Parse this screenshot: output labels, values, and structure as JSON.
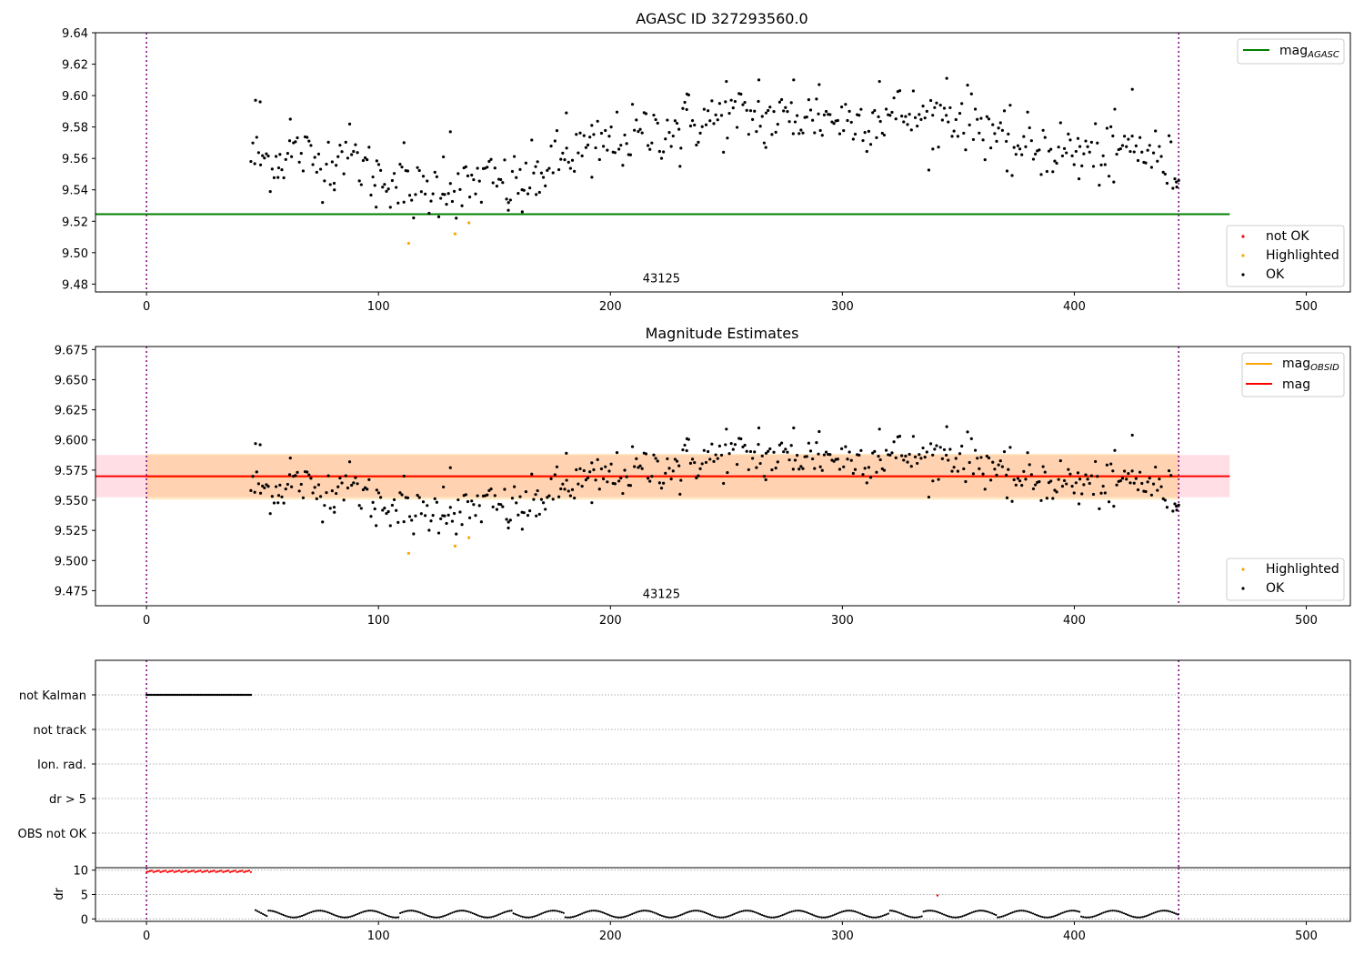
{
  "chart_data": [
    {
      "type": "scatter",
      "title": "AGASC ID 327293560.0",
      "xlim": [
        -22,
        519
      ],
      "ylim": [
        9.475,
        9.64
      ],
      "xticks": [
        0,
        100,
        200,
        300,
        400,
        500
      ],
      "yticks": [
        9.48,
        9.5,
        9.52,
        9.54,
        9.56,
        9.58,
        9.6,
        9.62,
        9.64
      ],
      "ytick_labels": [
        "9.48",
        "9.50",
        "9.52",
        "9.54",
        "9.56",
        "9.58",
        "9.60",
        "9.62",
        "9.64"
      ],
      "vertical_lines_x": [
        0,
        445
      ],
      "obsid_label": {
        "text": "43125",
        "x": 222,
        "y": 9.481
      },
      "mag_agasc": {
        "value": 9.5245,
        "x_range": [
          -22,
          467
        ],
        "color": "#008000"
      },
      "highlighted_points": [
        [
          113,
          9.506
        ],
        [
          133,
          9.512
        ],
        [
          139,
          9.519
        ]
      ],
      "legend_upper": {
        "position": "upper right",
        "mag_prefix": "mag",
        "mag_subscript": "AGASC"
      },
      "legend_lower": {
        "position": "lower right",
        "labels": [
          "not OK",
          "Highlighted",
          "OK"
        ]
      },
      "ok_anchors": [
        [
          45,
          9.561
        ],
        [
          55,
          9.558
        ],
        [
          65,
          9.565
        ],
        [
          75,
          9.556
        ],
        [
          85,
          9.566
        ],
        [
          95,
          9.553
        ],
        [
          105,
          9.548
        ],
        [
          112,
          9.538
        ],
        [
          120,
          9.539
        ],
        [
          128,
          9.543
        ],
        [
          135,
          9.538
        ],
        [
          145,
          9.547
        ],
        [
          155,
          9.543
        ],
        [
          165,
          9.547
        ],
        [
          175,
          9.556
        ],
        [
          185,
          9.564
        ],
        [
          195,
          9.568
        ],
        [
          205,
          9.572
        ],
        [
          215,
          9.576
        ],
        [
          225,
          9.579
        ],
        [
          235,
          9.583
        ],
        [
          245,
          9.585
        ],
        [
          255,
          9.587
        ],
        [
          265,
          9.586
        ],
        [
          275,
          9.585
        ],
        [
          285,
          9.587
        ],
        [
          295,
          9.586
        ],
        [
          305,
          9.584
        ],
        [
          315,
          9.586
        ],
        [
          325,
          9.589
        ],
        [
          335,
          9.585
        ],
        [
          345,
          9.588
        ],
        [
          355,
          9.585
        ],
        [
          365,
          9.579
        ],
        [
          370,
          9.568
        ],
        [
          380,
          9.568
        ],
        [
          390,
          9.566
        ],
        [
          400,
          9.565
        ],
        [
          410,
          9.562
        ],
        [
          420,
          9.566
        ],
        [
          430,
          9.566
        ],
        [
          440,
          9.556
        ],
        [
          445,
          9.55
        ]
      ],
      "ok_extremes": [
        [
          47,
          9.597
        ],
        [
          49,
          9.596
        ],
        [
          57,
          9.554
        ],
        [
          62,
          9.585
        ],
        [
          81,
          9.54
        ],
        [
          99,
          9.529
        ],
        [
          111,
          9.57
        ],
        [
          128,
          9.561
        ],
        [
          131,
          9.577
        ],
        [
          156,
          9.527
        ],
        [
          162,
          9.526
        ],
        [
          168,
          9.537
        ],
        [
          181,
          9.589
        ],
        [
          192,
          9.548
        ],
        [
          230,
          9.555
        ],
        [
          233,
          9.601
        ],
        [
          250,
          9.609
        ],
        [
          264,
          9.61
        ],
        [
          267,
          9.567
        ],
        [
          279,
          9.61
        ],
        [
          290,
          9.607
        ],
        [
          316,
          9.609
        ],
        [
          339,
          9.566
        ],
        [
          345,
          9.611
        ],
        [
          371,
          9.552
        ],
        [
          402,
          9.547
        ],
        [
          417,
          9.545
        ],
        [
          425,
          9.604
        ],
        [
          444,
          9.545
        ]
      ],
      "ok_noise_sd": 0.0095,
      "ok_count": 480,
      "point_colors": {
        "ok": "#000000",
        "not_ok": "#ff0000",
        "highlighted": "#ffa500"
      }
    },
    {
      "type": "scatter",
      "title": "Magnitude Estimates",
      "xlim": [
        -22,
        519
      ],
      "ylim": [
        9.4625,
        9.6775
      ],
      "xticks": [
        0,
        100,
        200,
        300,
        400,
        500
      ],
      "yticks": [
        9.475,
        9.5,
        9.525,
        9.55,
        9.575,
        9.6,
        9.625,
        9.65,
        9.675
      ],
      "ytick_labels": [
        "9.475",
        "9.500",
        "9.525",
        "9.550",
        "9.575",
        "9.600",
        "9.625",
        "9.650",
        "9.675"
      ],
      "vertical_lines_x": [
        0,
        445
      ],
      "obsid_label": {
        "text": "43125",
        "x": 222,
        "y": 9.469
      },
      "mag": {
        "value": 9.5699,
        "band": [
          9.5525,
          9.5875
        ],
        "x_range": [
          -22,
          467
        ],
        "color": "#ff0000"
      },
      "mag_obsid": {
        "value": 9.5695,
        "band": [
          9.5505,
          9.5885
        ],
        "x_range": [
          0,
          445
        ],
        "color": "#ffa500"
      },
      "legend_upper": {
        "position": "upper right",
        "labels": [
          {
            "prefix": "mag",
            "subscript": "OBSID"
          },
          {
            "prefix": "mag",
            "subscript": ""
          }
        ]
      },
      "legend_lower": {
        "position": "lower right",
        "labels": [
          "Highlighted",
          "OK"
        ]
      }
    },
    {
      "type": "scatter",
      "title": "",
      "xlim": [
        -22,
        519
      ],
      "categories": [
        "not Kalman",
        "not track",
        "Ion. rad.",
        "dr > 5",
        "OBS not OK"
      ],
      "flag_series": [
        {
          "category": "not Kalman",
          "x_range": [
            0,
            45
          ],
          "step": 0.75
        }
      ],
      "vertical_lines_x": [
        0,
        445
      ]
    },
    {
      "type": "scatter",
      "title": "",
      "ylabel": "dr",
      "xlim": [
        -22,
        519
      ],
      "ylim": [
        -0.5,
        10.5
      ],
      "xticks": [
        0,
        100,
        200,
        300,
        400,
        500
      ],
      "xtick_labels": [
        "0",
        "100",
        "200",
        "300",
        "400",
        "500"
      ],
      "yticks": [
        0,
        5,
        10
      ],
      "ytick_labels": [
        "0",
        "5",
        "10"
      ],
      "vertical_lines_x": [
        0,
        445
      ],
      "red_band": {
        "x_range": [
          0,
          45
        ],
        "y_range": [
          9.6,
          10
        ]
      },
      "red_outlier": [
        341,
        4.8
      ],
      "segment_breaks": [
        109,
        158,
        180,
        320,
        335,
        367,
        403
      ],
      "dr_base": 1.0,
      "dr_amplitude": 0.7,
      "dr_period": 22
    }
  ]
}
